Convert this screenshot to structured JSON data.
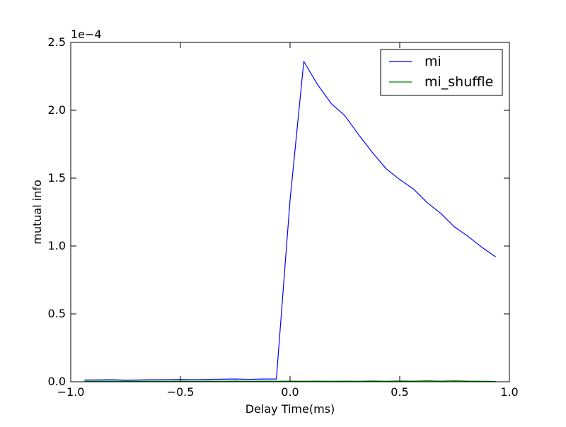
{
  "chart_data": {
    "type": "line",
    "title": "",
    "xlabel": "Delay Time(ms)",
    "ylabel": "mutual info",
    "y_scale_label": "1e−4",
    "xlim": [
      -1.0,
      1.0
    ],
    "ylim": [
      0.0,
      2.5
    ],
    "x_tick_values": [
      -1.0,
      -0.5,
      0.0,
      0.5,
      1.0
    ],
    "x_tick_labels": [
      "−1.0",
      "−0.5",
      "0.0",
      "0.5",
      "1.0"
    ],
    "y_tick_values": [
      0.0,
      0.5,
      1.0,
      1.5,
      2.0,
      2.5
    ],
    "y_tick_labels": [
      "0.0",
      "0.5",
      "1.0",
      "1.5",
      "2.0",
      "2.5"
    ],
    "grid": false,
    "legend_position": "top-right",
    "series": [
      {
        "name": "mi",
        "color": "#0000ff",
        "x": [
          -0.9375,
          -0.875,
          -0.8125,
          -0.75,
          -0.6875,
          -0.625,
          -0.5625,
          -0.5,
          -0.4375,
          -0.375,
          -0.3125,
          -0.25,
          -0.1875,
          -0.125,
          -0.0625,
          0.0,
          0.0625,
          0.125,
          0.1875,
          0.25,
          0.3125,
          0.375,
          0.4375,
          0.5,
          0.5625,
          0.625,
          0.6875,
          0.75,
          0.8125,
          0.875,
          0.9375
        ],
        "values": [
          0.013,
          0.014,
          0.015,
          0.012,
          0.013,
          0.016,
          0.016,
          0.017,
          0.016,
          0.018,
          0.019,
          0.02,
          0.018,
          0.02,
          0.02,
          1.34,
          2.36,
          2.19,
          2.05,
          1.96,
          1.82,
          1.69,
          1.57,
          1.49,
          1.42,
          1.32,
          1.24,
          1.14,
          1.07,
          0.99,
          0.92
        ]
      },
      {
        "name": "mi_shuffle",
        "color": "#008000",
        "x": [
          -0.9375,
          -0.875,
          -0.8125,
          -0.75,
          -0.6875,
          -0.625,
          -0.5625,
          -0.5,
          -0.4375,
          -0.375,
          -0.3125,
          -0.25,
          -0.1875,
          -0.125,
          -0.0625,
          0.0,
          0.0625,
          0.125,
          0.1875,
          0.25,
          0.3125,
          0.375,
          0.4375,
          0.5,
          0.5625,
          0.625,
          0.6875,
          0.75,
          0.8125,
          0.875,
          0.9375
        ],
        "values": [
          0.004,
          0.005,
          0.004,
          0.005,
          0.004,
          0.005,
          0.004,
          0.005,
          0.004,
          0.005,
          0.004,
          0.005,
          0.004,
          0.005,
          0.004,
          0.005,
          0.004,
          0.005,
          0.004,
          0.005,
          0.004,
          0.006,
          0.004,
          0.006,
          0.005,
          0.007,
          0.005,
          0.007,
          0.005,
          0.004,
          0.003
        ]
      }
    ]
  }
}
